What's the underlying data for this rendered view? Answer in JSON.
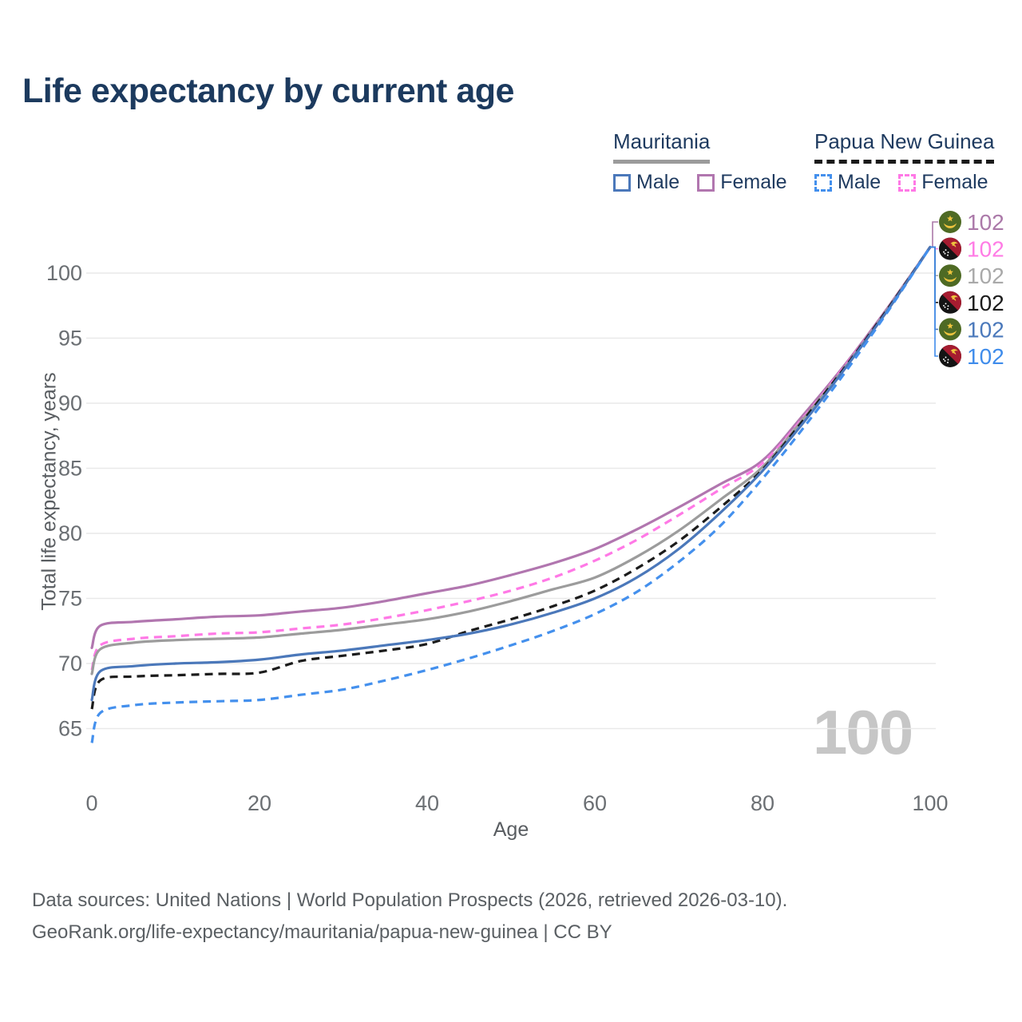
{
  "title": "Life expectancy by current age",
  "watermark": "100",
  "legend": {
    "groups": [
      {
        "label": "Mauritania",
        "line_style": "solid",
        "underline_color": "#9b9b9b",
        "items": [
          {
            "label": "Male",
            "color": "#4b78ba",
            "dashed": false
          },
          {
            "label": "Female",
            "color": "#b176af",
            "dashed": false
          }
        ]
      },
      {
        "label": "Papua New Guinea",
        "line_style": "dashed",
        "underline_color": "#1a1a1a",
        "items": [
          {
            "label": "Male",
            "color": "#4490ed",
            "dashed": true
          },
          {
            "label": "Female",
            "color": "#ff79e6",
            "dashed": true
          }
        ]
      }
    ]
  },
  "chart_data": {
    "type": "line",
    "title": "Life expectancy by current age",
    "xlabel": "Age",
    "ylabel": "Total life expectancy, years",
    "xlim": [
      0,
      100
    ],
    "ylim": [
      63,
      103
    ],
    "x_ticks": [
      0,
      20,
      40,
      60,
      80,
      100
    ],
    "y_ticks": [
      65,
      70,
      75,
      80,
      85,
      90,
      95,
      100
    ],
    "grid": "horizontal",
    "legend_position": "top-right",
    "x": [
      0,
      1,
      5,
      10,
      15,
      20,
      25,
      30,
      35,
      40,
      45,
      50,
      55,
      60,
      65,
      70,
      75,
      80,
      85,
      90,
      95,
      100
    ],
    "series": [
      {
        "name": "Mauritania Female",
        "country": "Mauritania",
        "sex": "Female",
        "color": "#b176af",
        "dash": "solid",
        "values": [
          71.2,
          72.9,
          73.2,
          73.4,
          73.6,
          73.7,
          74.0,
          74.3,
          74.8,
          75.4,
          76.0,
          76.8,
          77.7,
          78.8,
          80.3,
          82.0,
          83.8,
          85.6,
          89.2,
          93.1,
          97.4,
          102
        ]
      },
      {
        "name": "Papua New Guinea Female",
        "country": "Papua New Guinea",
        "sex": "Female",
        "color": "#ff79e6",
        "dash": "dashed",
        "values": [
          69.5,
          71.4,
          71.9,
          72.1,
          72.3,
          72.4,
          72.7,
          73.0,
          73.5,
          74.1,
          74.8,
          75.6,
          76.6,
          77.9,
          79.5,
          81.4,
          83.4,
          85.4,
          89.0,
          93.0,
          97.3,
          102
        ]
      },
      {
        "name": "Mauritania",
        "country": "Mauritania",
        "sex": "Both",
        "color": "#9c9c9c",
        "dash": "solid",
        "values": [
          69.2,
          71.1,
          71.6,
          71.8,
          71.9,
          72.0,
          72.3,
          72.6,
          73.0,
          73.4,
          74.0,
          74.8,
          75.7,
          76.6,
          78.2,
          80.2,
          82.6,
          85.1,
          88.9,
          92.9,
          97.3,
          102
        ]
      },
      {
        "name": "Papua New Guinea",
        "country": "Papua New Guinea",
        "sex": "Both",
        "color": "#1b1b1b",
        "dash": "dashed",
        "values": [
          66.5,
          68.7,
          69.0,
          69.1,
          69.2,
          69.3,
          70.2,
          70.6,
          71.0,
          71.5,
          72.5,
          73.4,
          74.4,
          75.6,
          77.3,
          79.4,
          82.0,
          84.9,
          88.8,
          92.9,
          97.3,
          102
        ]
      },
      {
        "name": "Mauritania Male",
        "country": "Mauritania",
        "sex": "Male",
        "color": "#4b78ba",
        "dash": "solid",
        "values": [
          67.2,
          69.4,
          69.8,
          70.0,
          70.1,
          70.3,
          70.7,
          71.0,
          71.4,
          71.8,
          72.3,
          73.0,
          73.9,
          75.0,
          76.6,
          78.8,
          81.6,
          84.8,
          88.6,
          92.8,
          97.2,
          102
        ]
      },
      {
        "name": "Papua New Guinea Male",
        "country": "Papua New Guinea",
        "sex": "Male",
        "color": "#4490ed",
        "dash": "dashed",
        "values": [
          63.9,
          66.2,
          66.8,
          67.0,
          67.1,
          67.2,
          67.6,
          68.0,
          68.7,
          69.5,
          70.4,
          71.4,
          72.5,
          73.8,
          75.5,
          77.8,
          80.6,
          84.2,
          88.2,
          92.5,
          97.1,
          102
        ]
      }
    ],
    "end_labels": [
      {
        "value": "102",
        "series": "Mauritania Female",
        "flag": "mauritania",
        "color": "#ab79a9"
      },
      {
        "value": "102",
        "series": "Papua New Guinea Female",
        "flag": "papua-new-guinea",
        "color": "#ff7ce5"
      },
      {
        "value": "102",
        "series": "Mauritania",
        "flag": "mauritania",
        "color": "#a9a9a9"
      },
      {
        "value": "102",
        "series": "Papua New Guinea",
        "flag": "papua-new-guinea",
        "color": "#1c1c1c"
      },
      {
        "value": "102",
        "series": "Mauritania Male",
        "flag": "mauritania",
        "color": "#4b79bb"
      },
      {
        "value": "102",
        "series": "Papua New Guinea Male",
        "flag": "papua-new-guinea",
        "color": "#3f8ceb"
      }
    ]
  },
  "colors": {
    "title": "#1c3a5e",
    "axis_text": "#6b6f73",
    "grid": "#e9e9e9",
    "watermark": "#c6c6c6",
    "footer_text": "#5a5f63",
    "legend_text": "#1e3a5f"
  },
  "footer": {
    "line1": "Data sources: United Nations | World Population Prospects (2026, retrieved 2026-03-10).",
    "line2": "GeoRank.org/life-expectancy/mauritania/papua-new-guinea | CC BY"
  }
}
